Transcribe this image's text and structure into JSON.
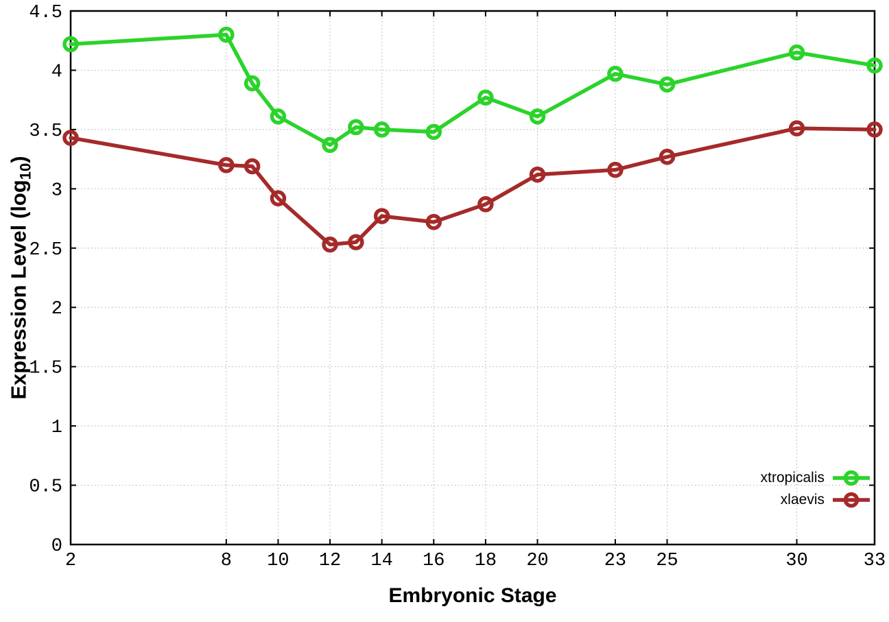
{
  "chart_data": {
    "type": "line",
    "title": "",
    "xlabel": "Embryonic Stage",
    "ylabel": "Expression Level (log10)",
    "ylabel_parts": [
      "Expression Level (log",
      "10",
      ")"
    ],
    "x": [
      2,
      8,
      9,
      10,
      12,
      13,
      14,
      16,
      18,
      20,
      23,
      25,
      30,
      33
    ],
    "x_ticks": [
      2,
      8,
      10,
      12,
      14,
      16,
      18,
      20,
      23,
      25,
      30,
      33
    ],
    "y_ticks": [
      0,
      0.5,
      1,
      1.5,
      2,
      2.5,
      3,
      3.5,
      4,
      4.5
    ],
    "xlim": [
      2,
      33
    ],
    "ylim": [
      0,
      4.5
    ],
    "grid": "dotted",
    "legend_position": "inside-bottom-right",
    "marker": "open-circle",
    "series": [
      {
        "name": "xtropicalis",
        "color": "#2bd32b",
        "values": [
          4.22,
          4.3,
          3.89,
          3.61,
          3.37,
          3.52,
          3.5,
          3.48,
          3.77,
          3.61,
          3.97,
          3.88,
          4.15,
          4.04
        ]
      },
      {
        "name": "xlaevis",
        "color": "#a52a2a",
        "values": [
          3.43,
          3.2,
          3.19,
          2.92,
          2.53,
          2.55,
          2.77,
          2.72,
          2.87,
          3.12,
          3.16,
          3.27,
          3.51,
          3.5
        ]
      }
    ]
  }
}
